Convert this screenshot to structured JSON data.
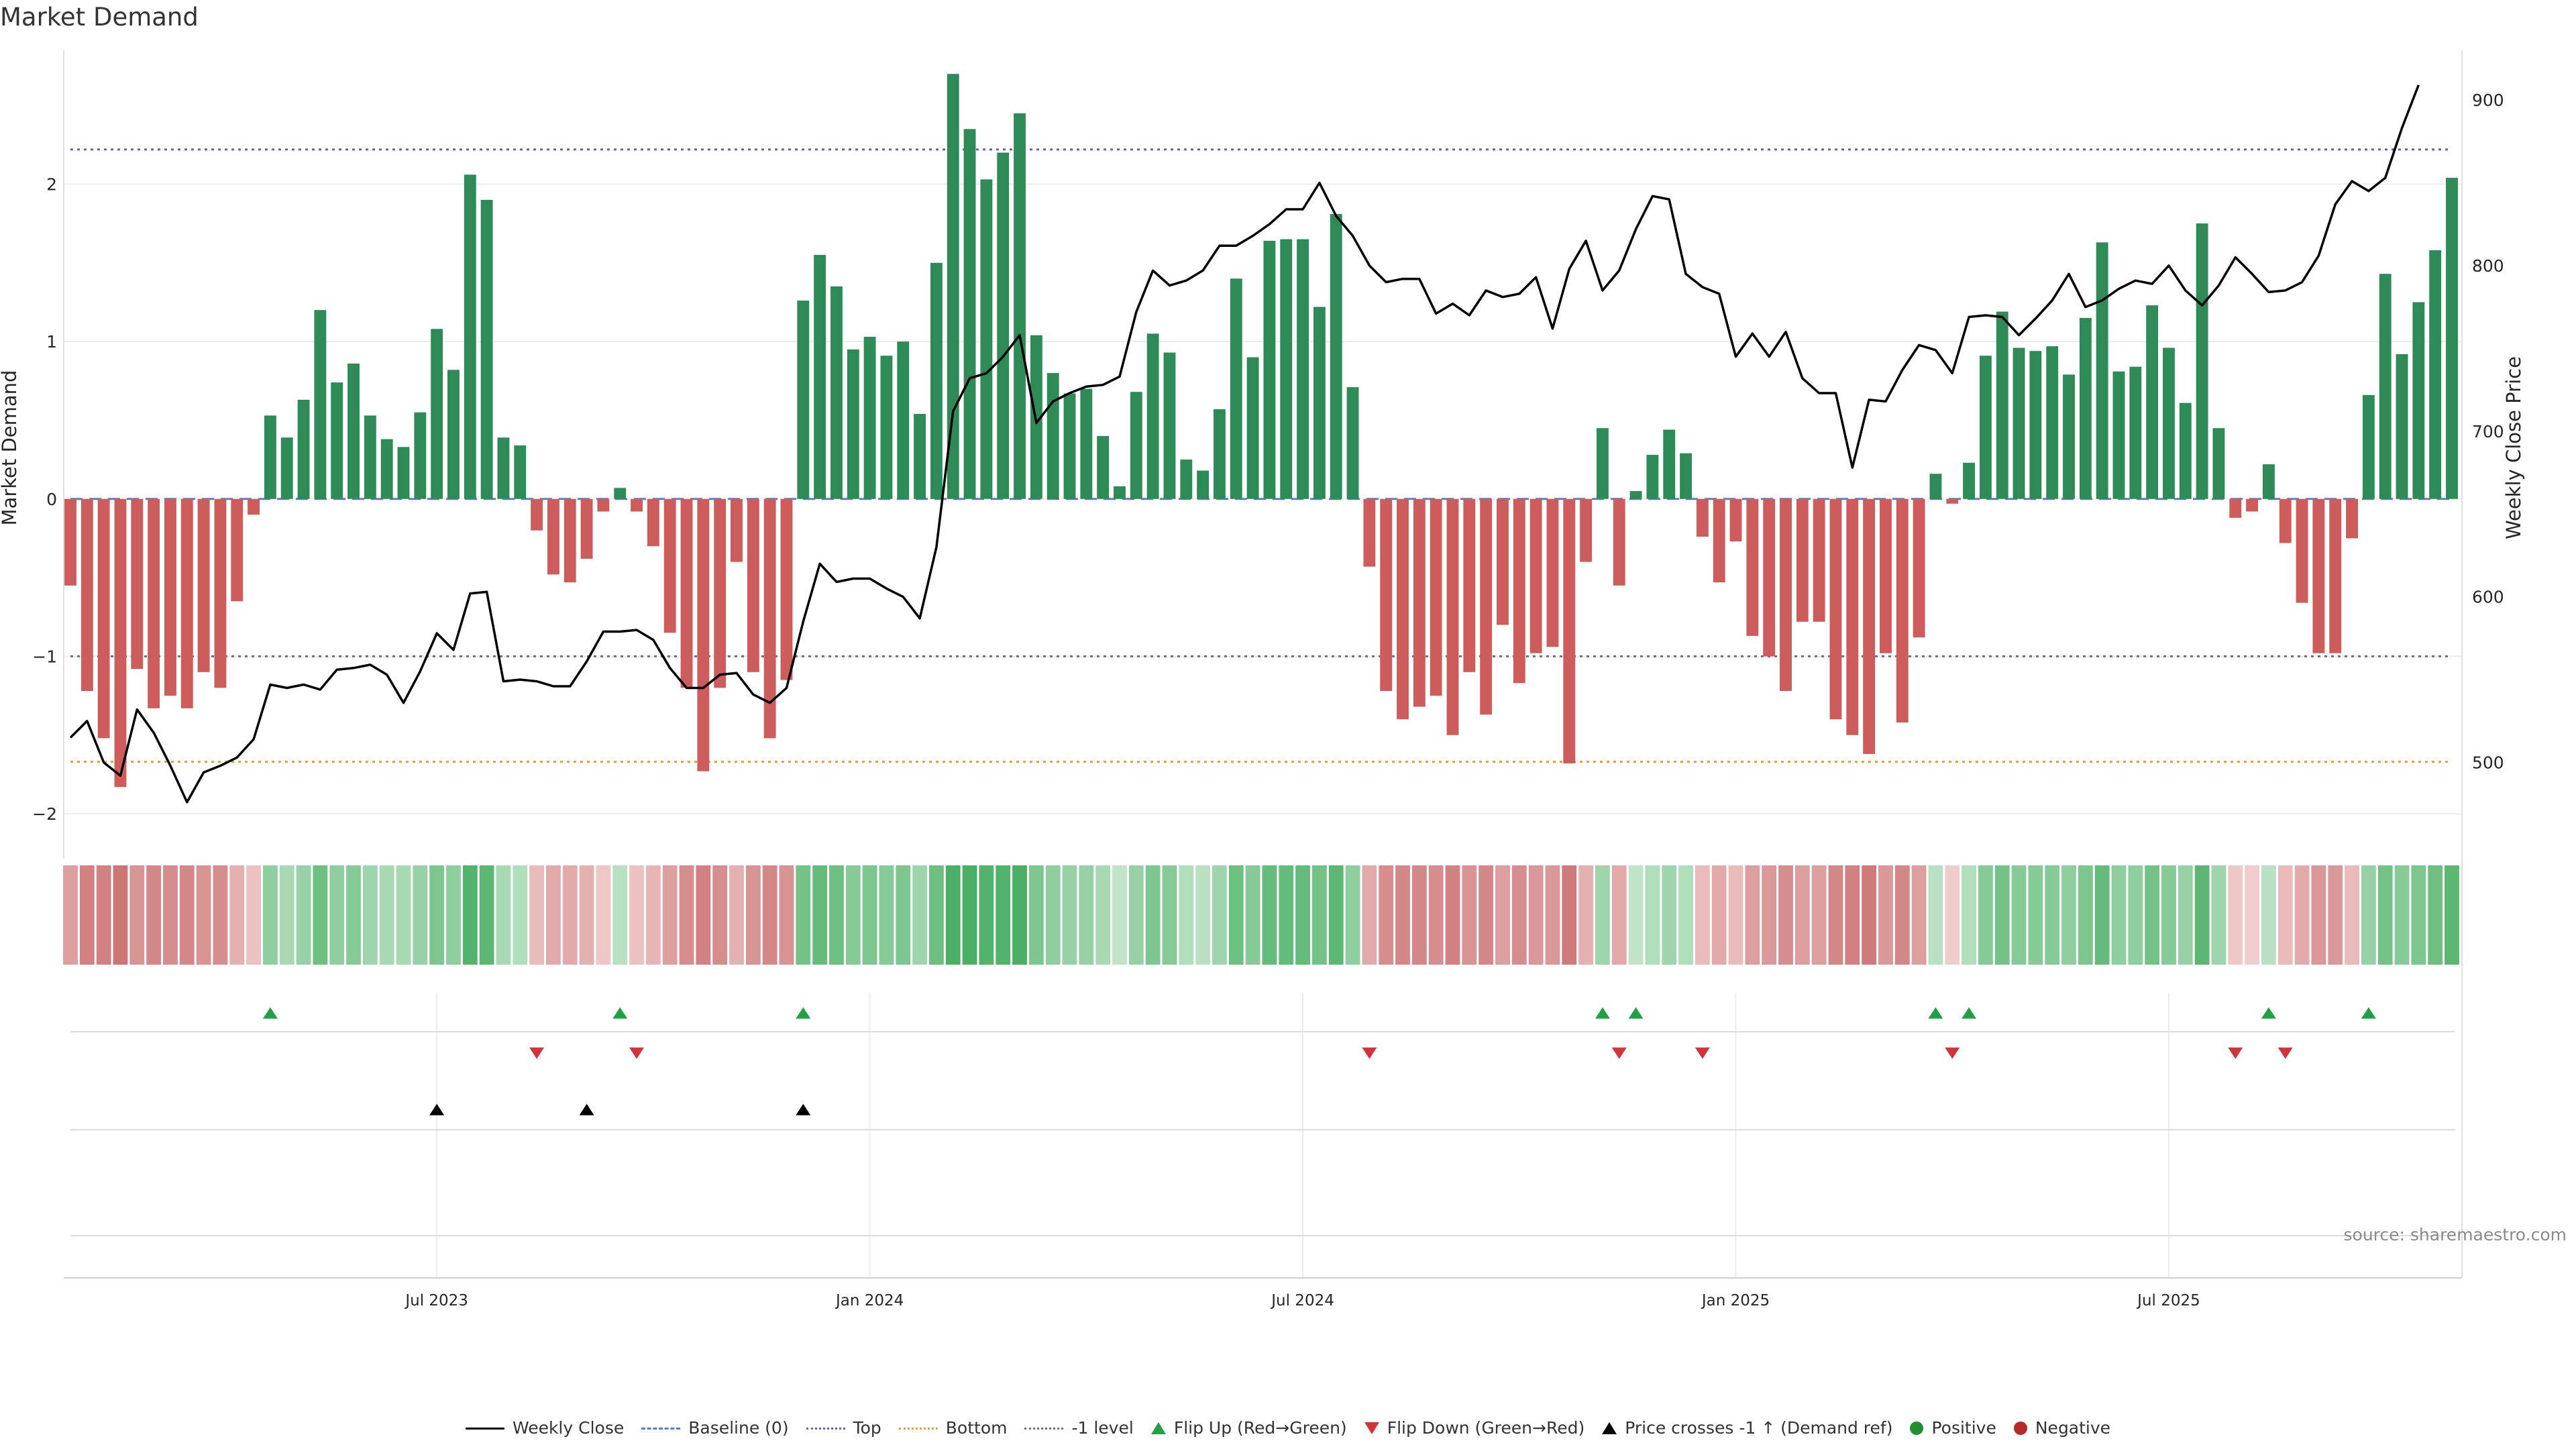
{
  "title": "Market Demand",
  "source": "source: sharemaestro.com",
  "legend": [
    {
      "label": "Weekly Close",
      "style": "line"
    },
    {
      "label": "Baseline (0)",
      "style": "dash"
    },
    {
      "label": "Top",
      "style": "dot-purple"
    },
    {
      "label": "Bottom",
      "style": "dot-orange"
    },
    {
      "label": "-1 level",
      "style": "dot-gray"
    },
    {
      "label": "Flip Up (Red→Green)",
      "style": "tri-up"
    },
    {
      "label": "Flip Down (Green→Red)",
      "style": "tri-down"
    },
    {
      "label": "Price crosses -1 ↑ (Demand ref)",
      "style": "tri-black"
    },
    {
      "label": "Positive",
      "style": "circle-green"
    },
    {
      "label": "Negative",
      "style": "circle-red"
    }
  ],
  "colors": {
    "positive": "#2e8b57",
    "negative": "#cd5c5c",
    "price": "#000000",
    "top": "#6b5fa8",
    "bottom": "#d9a23a",
    "minus_one": "#6c6c8c",
    "baseline": "#5b7fbf",
    "flip_up": "#22a045",
    "flip_down": "#d0343a"
  },
  "chart_data": {
    "type": "bar",
    "title": "Market Demand",
    "ylabel": "Market Demand",
    "y2label": "Weekly Close Price",
    "ylim": [
      -2.2,
      2.85
    ],
    "y2lim": [
      450,
      930
    ],
    "yticks": [
      -2,
      -1,
      0,
      1,
      2
    ],
    "y2ticks": [
      500,
      600,
      700,
      800,
      900
    ],
    "date_ticks": [
      {
        "label": "Jul 2023",
        "index": 22
      },
      {
        "label": "Jan 2024",
        "index": 48
      },
      {
        "label": "Jul 2024",
        "index": 74
      },
      {
        "label": "Jan 2025",
        "index": 100
      },
      {
        "label": "Jul 2025",
        "index": 126
      }
    ],
    "reference_lines": {
      "top": 2.22,
      "bottom": -1.67,
      "minus_one": -1.0,
      "baseline": 0
    },
    "demand": [
      -0.55,
      -1.22,
      -1.52,
      -1.83,
      -1.08,
      -1.33,
      -1.25,
      -1.33,
      -1.1,
      -1.2,
      -0.65,
      -0.1,
      0.53,
      0.39,
      0.63,
      1.2,
      0.74,
      0.86,
      0.53,
      0.38,
      0.33,
      0.55,
      1.08,
      0.82,
      2.06,
      1.9,
      0.39,
      0.34,
      -0.2,
      -0.48,
      -0.53,
      -0.38,
      -0.08,
      0.07,
      -0.08,
      -0.3,
      -0.85,
      -1.2,
      -1.73,
      -1.2,
      -0.4,
      -1.1,
      -1.52,
      -1.15,
      1.26,
      1.55,
      1.35,
      0.95,
      1.03,
      0.91,
      1.0,
      0.54,
      1.5,
      2.7,
      2.35,
      2.03,
      2.2,
      2.45,
      1.04,
      0.8,
      0.67,
      0.7,
      0.4,
      0.08,
      0.68,
      1.05,
      0.93,
      0.25,
      0.18,
      0.57,
      1.4,
      0.9,
      1.64,
      1.65,
      1.65,
      1.22,
      1.81,
      0.71,
      -0.43,
      -1.22,
      -1.4,
      -1.32,
      -1.25,
      -1.5,
      -1.1,
      -1.37,
      -0.8,
      -1.17,
      -0.98,
      -0.94,
      -1.68,
      -0.4,
      0.45,
      -0.55,
      0.05,
      0.28,
      0.44,
      0.29,
      -0.24,
      -0.53,
      -0.27,
      -0.87,
      -1.0,
      -1.22,
      -0.78,
      -0.78,
      -1.4,
      -1.5,
      -1.62,
      -0.98,
      -1.42,
      -0.88,
      0.16,
      -0.03,
      0.23,
      0.91,
      1.19,
      0.96,
      0.94,
      0.97,
      0.79,
      1.15,
      1.63,
      0.81,
      0.84,
      1.23,
      0.96,
      0.61,
      1.75,
      0.45,
      -0.12,
      -0.08,
      0.22,
      -0.28,
      -0.66,
      -0.98,
      -0.98,
      -0.25,
      0.66,
      1.43,
      0.92,
      1.25,
      1.58,
      2.04
    ],
    "weekly_close": [
      515,
      525,
      500,
      492,
      532,
      518,
      498,
      476,
      494,
      498,
      503,
      514,
      547,
      545,
      547,
      544,
      556,
      557,
      559,
      553,
      536,
      555,
      578,
      568,
      602,
      603,
      549,
      550,
      549,
      546,
      546,
      561,
      579,
      579,
      580,
      574,
      557,
      545,
      545,
      553,
      554,
      541,
      536,
      545,
      585,
      620,
      609,
      611,
      611,
      605,
      600,
      587,
      630,
      712,
      732,
      735,
      745,
      758,
      705,
      718,
      723,
      727,
      728,
      733,
      772,
      797,
      788,
      791,
      797,
      812,
      812,
      818,
      825,
      834,
      834,
      850,
      830,
      818,
      800,
      790,
      792,
      792,
      771,
      777,
      770,
      785,
      781,
      783,
      793,
      762,
      798,
      815,
      785,
      797,
      822,
      842,
      840,
      795,
      787,
      783,
      745,
      759,
      745,
      760,
      732,
      723,
      723,
      678,
      719,
      718,
      737,
      752,
      749,
      735,
      769,
      770,
      769,
      758,
      768,
      779,
      795,
      775,
      779,
      786,
      791,
      789,
      800,
      785,
      776,
      788,
      805,
      795,
      784,
      785,
      790,
      806,
      837,
      851,
      845,
      853,
      883,
      909
    ],
    "strength_intensity": [
      0.55,
      0.8,
      0.8,
      0.9,
      0.65,
      0.75,
      0.7,
      0.75,
      0.65,
      0.7,
      0.4,
      0.25,
      0.5,
      0.35,
      0.45,
      0.7,
      0.5,
      0.55,
      0.4,
      0.35,
      0.35,
      0.45,
      0.6,
      0.5,
      0.85,
      0.8,
      0.35,
      0.3,
      0.3,
      0.45,
      0.45,
      0.4,
      0.2,
      0.25,
      0.25,
      0.35,
      0.55,
      0.7,
      0.8,
      0.7,
      0.4,
      0.65,
      0.75,
      0.65,
      0.65,
      0.75,
      0.7,
      0.55,
      0.6,
      0.55,
      0.6,
      0.4,
      0.7,
      0.9,
      0.9,
      0.85,
      0.85,
      0.9,
      0.6,
      0.5,
      0.45,
      0.45,
      0.35,
      0.2,
      0.45,
      0.6,
      0.55,
      0.3,
      0.25,
      0.4,
      0.7,
      0.55,
      0.75,
      0.75,
      0.75,
      0.65,
      0.8,
      0.5,
      0.45,
      0.7,
      0.75,
      0.75,
      0.7,
      0.8,
      0.65,
      0.75,
      0.55,
      0.7,
      0.6,
      0.6,
      0.85,
      0.4,
      0.4,
      0.45,
      0.2,
      0.3,
      0.4,
      0.3,
      0.3,
      0.45,
      0.3,
      0.55,
      0.6,
      0.7,
      0.55,
      0.55,
      0.75,
      0.8,
      0.85,
      0.6,
      0.75,
      0.55,
      0.25,
      0.15,
      0.3,
      0.55,
      0.65,
      0.55,
      0.55,
      0.55,
      0.5,
      0.6,
      0.75,
      0.5,
      0.5,
      0.65,
      0.55,
      0.45,
      0.8,
      0.4,
      0.2,
      0.15,
      0.25,
      0.3,
      0.45,
      0.6,
      0.6,
      0.3,
      0.45,
      0.65,
      0.55,
      0.6,
      0.7,
      0.8
    ],
    "flip_up_indices": [
      12,
      33,
      44,
      92,
      94,
      112,
      114,
      132,
      138
    ],
    "flip_down_indices": [
      28,
      34,
      78,
      93,
      98,
      113,
      130,
      133
    ],
    "price_cross_indices": [
      22,
      31,
      44
    ]
  }
}
